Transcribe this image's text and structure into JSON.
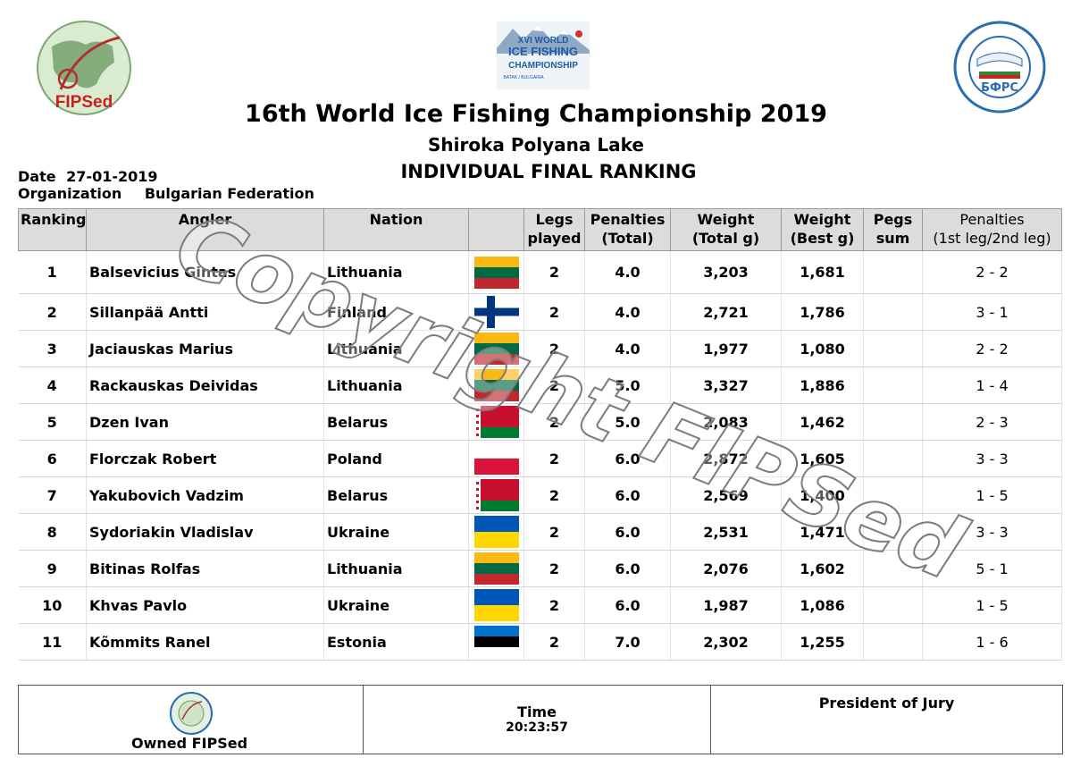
{
  "header": {
    "left_logo": {
      "text": "FIPSed",
      "icon": "fipsed-globe-logo",
      "color": "#c82020"
    },
    "center_logo": {
      "line1": "XVI WORLD",
      "line2": "ICE FISHING",
      "line3": "CHAMPIONSHIP",
      "line4": "BATAK / BULGARIA",
      "icon": "mountain-logo",
      "color": "#1f5aa6"
    },
    "right_logo": {
      "text": "БФРС",
      "icon": "bulgarian-federation-seal",
      "color": "#2a6db0"
    },
    "title": "16th World Ice Fishing Championship 2019",
    "subtitle": "Shiroka Polyana Lake",
    "heading": "INDIVIDUAL FINAL RANKING",
    "date_label": "Date",
    "date_value": "27-01-2019",
    "org_label": "Organization",
    "org_value": "Bulgarian Federation"
  },
  "table": {
    "headers": {
      "ranking": "Ranking",
      "angler": "Angler",
      "nation": "Nation",
      "legs_1": "Legs",
      "legs_2": "played",
      "pen_1": "Penalties",
      "pen_2": "(Total)",
      "wt_1": "Weight",
      "wt_2": "(Total g)",
      "best_1": "Weight",
      "best_2": "(Best g)",
      "pegs_1": "Pegs",
      "pegs_2": "sum",
      "pl_1": "Penalties",
      "pl_2": "(1st leg/2nd leg)"
    },
    "rows": [
      {
        "rank": "1",
        "angler": "Balsevicius Gintas",
        "nation": "Lithuania",
        "flag": "lithuania-flag",
        "legs": "2",
        "penalties": "4.0",
        "weight": "3,203",
        "best": "1,681",
        "pegs": "",
        "legpen": "2 - 2"
      },
      {
        "rank": "2",
        "angler": "Sillanpää Antti",
        "nation": "Finland",
        "flag": "finland-flag",
        "legs": "2",
        "penalties": "4.0",
        "weight": "2,721",
        "best": "1,786",
        "pegs": "",
        "legpen": "3 - 1"
      },
      {
        "rank": "3",
        "angler": "Jaciauskas Marius",
        "nation": "Lithuania",
        "flag": "lithuania-flag",
        "legs": "2",
        "penalties": "4.0",
        "weight": "1,977",
        "best": "1,080",
        "pegs": "",
        "legpen": "2 - 2"
      },
      {
        "rank": "4",
        "angler": "Rackauskas Deividas",
        "nation": "Lithuania",
        "flag": "lithuania-flag",
        "legs": "2",
        "penalties": "5.0",
        "weight": "3,327",
        "best": "1,886",
        "pegs": "",
        "legpen": "1 - 4"
      },
      {
        "rank": "5",
        "angler": "Dzen Ivan",
        "nation": "Belarus",
        "flag": "belarus-flag",
        "legs": "2",
        "penalties": "5.0",
        "weight": "2,083",
        "best": "1,462",
        "pegs": "",
        "legpen": "2 - 3"
      },
      {
        "rank": "6",
        "angler": "Florczak Robert",
        "nation": "Poland",
        "flag": "poland-flag",
        "legs": "2",
        "penalties": "6.0",
        "weight": "2,872",
        "best": "1,605",
        "pegs": "",
        "legpen": "3 - 3"
      },
      {
        "rank": "7",
        "angler": "Yakubovich Vadzim",
        "nation": "Belarus",
        "flag": "belarus-flag",
        "legs": "2",
        "penalties": "6.0",
        "weight": "2,569",
        "best": "1,400",
        "pegs": "",
        "legpen": "1 - 5"
      },
      {
        "rank": "8",
        "angler": "Sydoriakin Vladislav",
        "nation": "Ukraine",
        "flag": "ukraine-flag",
        "legs": "2",
        "penalties": "6.0",
        "weight": "2,531",
        "best": "1,471",
        "pegs": "",
        "legpen": "3 - 3"
      },
      {
        "rank": "9",
        "angler": "Bitinas Rolfas",
        "nation": "Lithuania",
        "flag": "lithuania-flag",
        "legs": "2",
        "penalties": "6.0",
        "weight": "2,076",
        "best": "1,602",
        "pegs": "",
        "legpen": "5 - 1"
      },
      {
        "rank": "10",
        "angler": "Khvas Pavlo",
        "nation": "Ukraine",
        "flag": "ukraine-flag",
        "legs": "2",
        "penalties": "6.0",
        "weight": "1,987",
        "best": "1,086",
        "pegs": "",
        "legpen": "1 - 5"
      },
      {
        "rank": "11",
        "angler": "Kõmmits Ranel",
        "nation": "Estonia",
        "flag": "estonia-flag",
        "legs": "2",
        "penalties": "7.0",
        "weight": "2,302",
        "best": "1,255",
        "pegs": "",
        "legpen": "1 - 6"
      }
    ]
  },
  "watermark": {
    "text": "Copyright FIPSed"
  },
  "footer": {
    "owned": "Owned FIPSed",
    "time_label": "Time",
    "time_value": "20:23:57",
    "jury_label": "President of Jury"
  }
}
